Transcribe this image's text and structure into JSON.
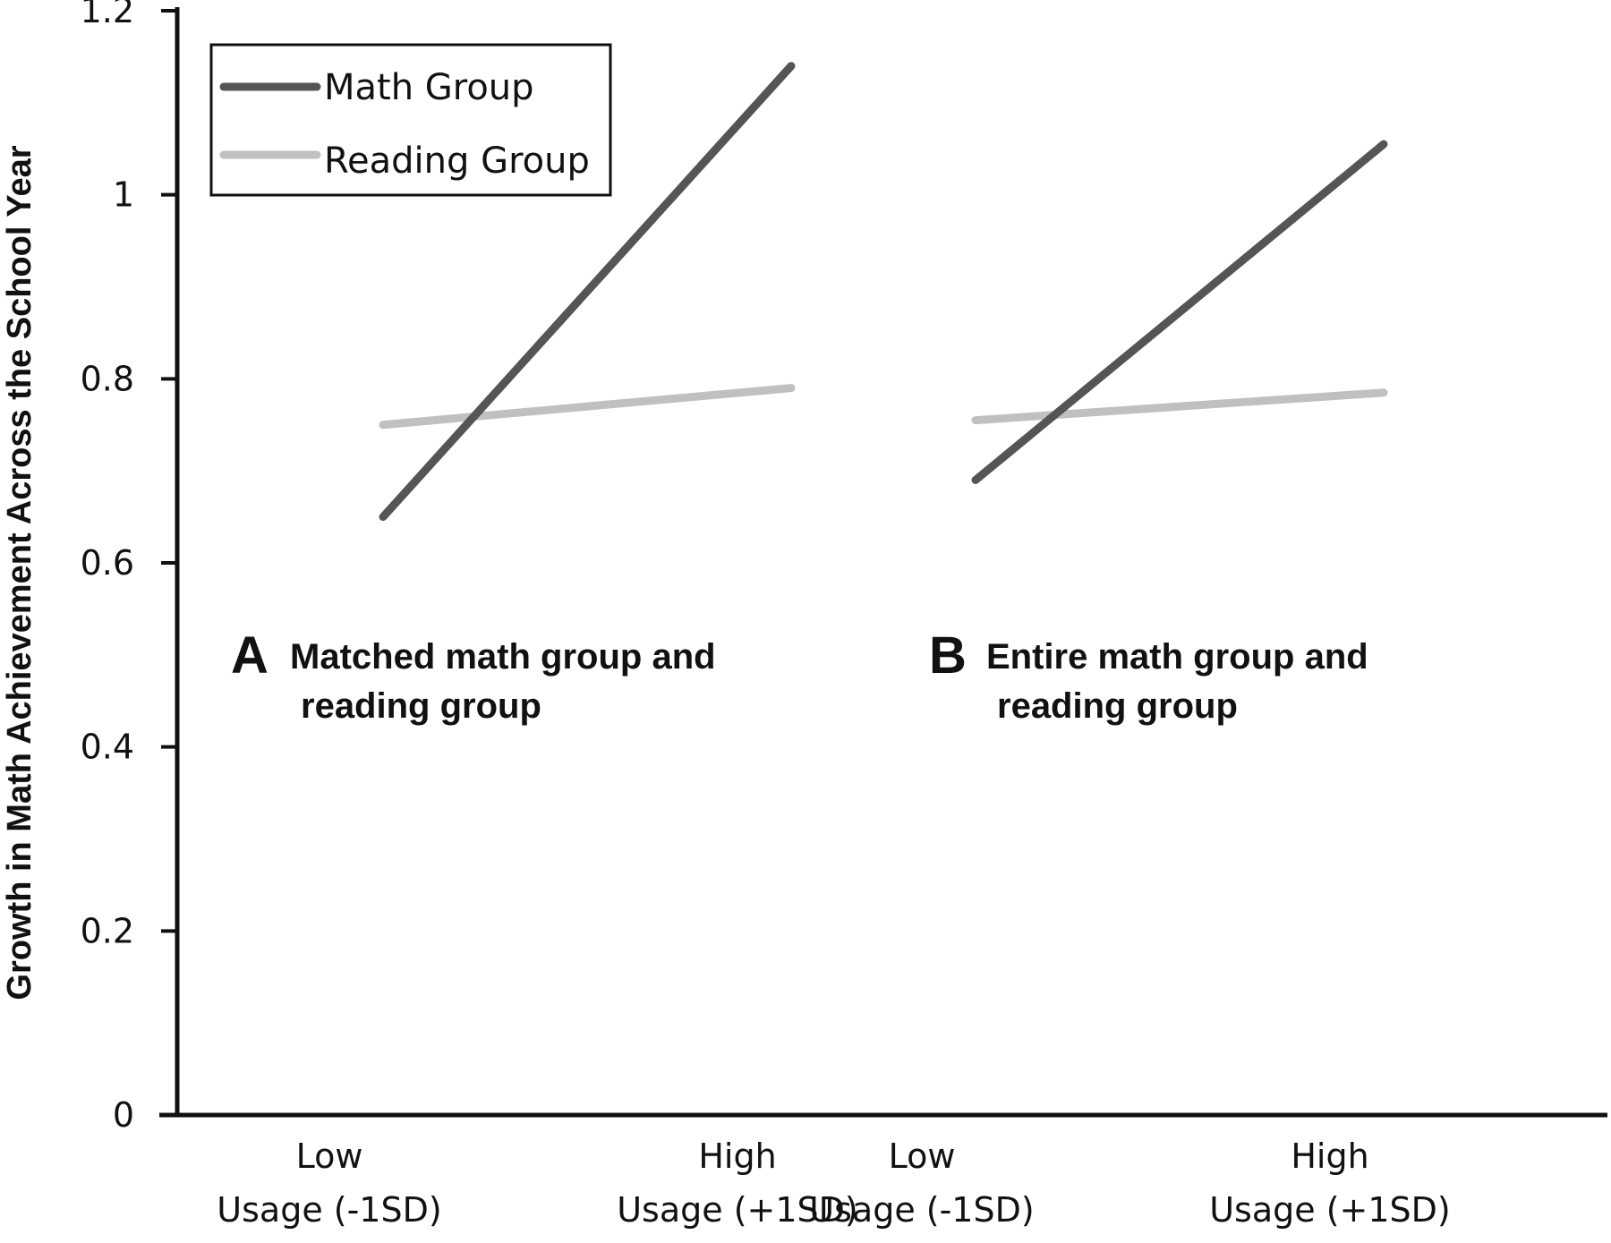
{
  "chart_data": {
    "type": "line",
    "ylabel": "Growth in Math Achievement Across the School Year",
    "ylim": [
      0,
      1.2
    ],
    "y_ticks": [
      "0",
      "0.2",
      "0.4",
      "0.6",
      "0.8",
      "1",
      "1.2"
    ],
    "x_categories": [
      {
        "line1": "Low",
        "line2": "Usage (-1SD)"
      },
      {
        "line1": "High",
        "line2": "Usage (+1SD)"
      },
      {
        "line1": "Low",
        "line2": "Usage (-1SD)"
      },
      {
        "line1": "High",
        "line2": "Usage (+1SD)"
      }
    ],
    "legend": {
      "position": "top-left",
      "entries": [
        {
          "label": "Math Group",
          "color": "#555555"
        },
        {
          "label": "Reading Group",
          "color": "#c0c0c0"
        }
      ]
    },
    "panels": [
      {
        "letter": "A",
        "label_line1": "Matched math group and",
        "label_line2": "reading group",
        "series": [
          {
            "name": "Math Group",
            "color": "#555555",
            "values": [
              0.65,
              1.14
            ]
          },
          {
            "name": "Reading Group",
            "color": "#c0c0c0",
            "values": [
              0.75,
              0.79
            ]
          }
        ]
      },
      {
        "letter": "B",
        "label_line1": "Entire math group and",
        "label_line2": "reading group",
        "series": [
          {
            "name": "Math Group",
            "color": "#555555",
            "values": [
              0.69,
              1.055
            ]
          },
          {
            "name": "Reading Group",
            "color": "#c0c0c0",
            "values": [
              0.755,
              0.785
            ]
          }
        ]
      }
    ],
    "grid": false
  }
}
